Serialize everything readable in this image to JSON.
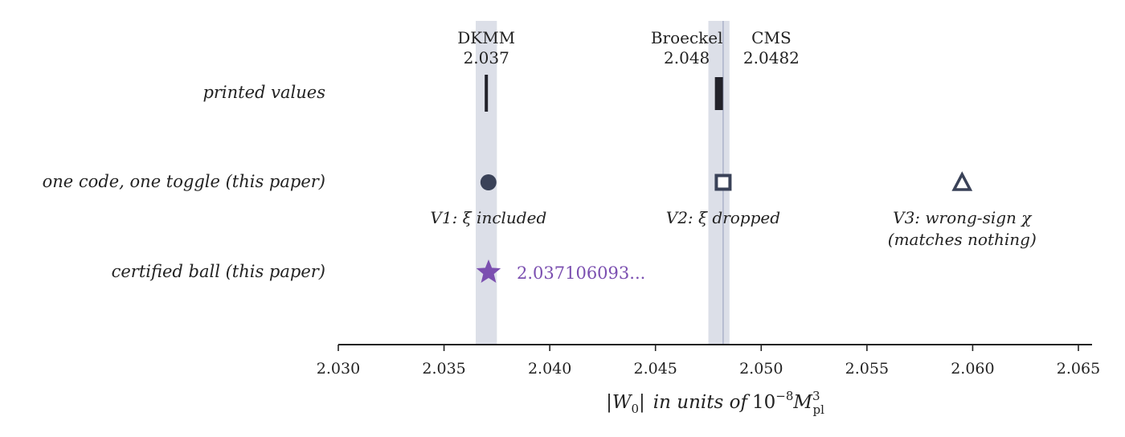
{
  "chart_data": {
    "type": "scatter",
    "xlim": [
      2.03,
      2.0655
    ],
    "x_ticks": [
      "2.030",
      "2.035",
      "2.040",
      "2.045",
      "2.050",
      "2.055",
      "2.060",
      "2.065"
    ],
    "x_tick_values": [
      2.03,
      2.035,
      2.04,
      2.045,
      2.05,
      2.055,
      2.06,
      2.065
    ],
    "xlabel": {
      "abs_open": "|",
      "var_main": "W",
      "var_sub": "0",
      "abs_close": "|",
      "in_units_of": "in units of",
      "num": "10",
      "num_exp": "−8",
      "mass": "M",
      "mass_sub": "pl",
      "mass_exp": "3"
    },
    "rows": [
      "printed values",
      "one code, one toggle (this paper)",
      "certified ball (this paper)"
    ],
    "shaded_bands": [
      {
        "x0": 2.0365,
        "x1": 2.0375
      },
      {
        "x0": 2.0475,
        "x1": 2.0485
      }
    ],
    "reference_line": {
      "x": 2.0482
    },
    "printed_values": [
      {
        "name": "DKMM",
        "value_label": "2.037",
        "x": 2.037,
        "marker": "thin-bar"
      },
      {
        "name": "Broeckel",
        "value_label": "2.048",
        "x": 2.048,
        "marker": "thick-bar"
      },
      {
        "name": "CMS",
        "value_label": "2.0482",
        "x": 2.0482,
        "marker": "none"
      }
    ],
    "one_code_points": [
      {
        "label": "V1: ξ included",
        "x": 2.0371,
        "marker": "circle"
      },
      {
        "label": "V2: ξ dropped",
        "x": 2.0482,
        "marker": "square"
      },
      {
        "label": "V3: wrong-sign χ",
        "label2": "(matches nothing)",
        "x": 2.0595,
        "marker": "triangle"
      }
    ],
    "certified": {
      "x": 2.037106093,
      "label": "2.037106093..."
    },
    "colors": {
      "band": "#dcdfe8",
      "ref_line": "#9ea7c2",
      "marker": "#3a4258",
      "bar": "#22222a",
      "star": "#7b4fb0",
      "axis": "#222222"
    }
  }
}
